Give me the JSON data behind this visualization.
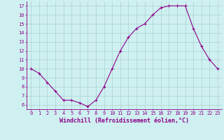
{
  "x": [
    0,
    1,
    2,
    3,
    4,
    5,
    6,
    7,
    8,
    9,
    10,
    11,
    12,
    13,
    14,
    15,
    16,
    17,
    18,
    19,
    20,
    21,
    22,
    23
  ],
  "y": [
    10,
    9.5,
    8.5,
    7.5,
    6.5,
    6.5,
    6.2,
    5.8,
    6.5,
    8.0,
    10.0,
    12.0,
    13.5,
    14.5,
    15.0,
    16.0,
    16.8,
    17.0,
    17.0,
    17.0,
    14.5,
    12.5,
    11.0,
    10.0
  ],
  "line_color": "#8B008B",
  "marker": "+",
  "marker_size": 3,
  "marker_edge_width": 0.8,
  "bg_color": "#cff0f0",
  "grid_color": "#aacfcf",
  "xlabel": "Windchill (Refroidissement éolien,°C)",
  "xlabel_color": "#8B008B",
  "tick_color": "#8B008B",
  "spine_color": "#8B008B",
  "ylim": [
    5.5,
    17.5
  ],
  "xlim": [
    -0.5,
    23.5
  ],
  "yticks": [
    6,
    7,
    8,
    9,
    10,
    11,
    12,
    13,
    14,
    15,
    16,
    17
  ],
  "xticks": [
    0,
    1,
    2,
    3,
    4,
    5,
    6,
    7,
    8,
    9,
    10,
    11,
    12,
    13,
    14,
    15,
    16,
    17,
    18,
    19,
    20,
    21,
    22,
    23
  ],
  "tick_fontsize": 5.0,
  "xlabel_fontsize": 6.0,
  "line_width": 0.8
}
